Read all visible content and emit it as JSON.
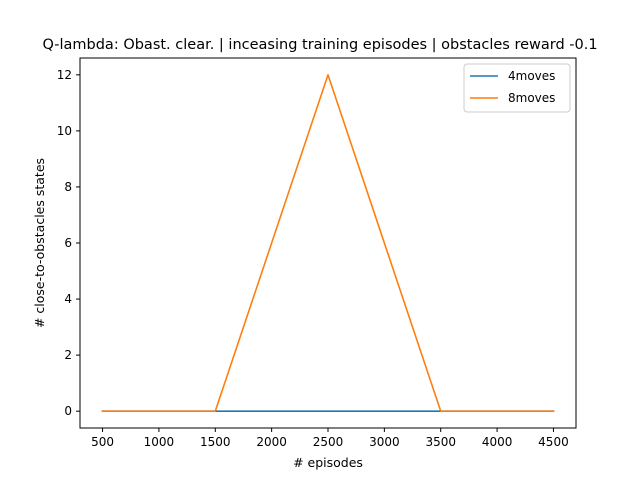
{
  "chart_data": {
    "type": "line",
    "title": "Q-lambda: Obast. clear. | inceasing training episodes | obstacles reward -0.1",
    "xlabel": "# episodes",
    "ylabel": "# close-to-obstacles states",
    "x": [
      500,
      1500,
      2500,
      3500,
      4500
    ],
    "series": [
      {
        "name": "4moves",
        "color": "#1f77b4",
        "values": [
          0,
          0,
          0,
          0,
          0
        ]
      },
      {
        "name": "8moves",
        "color": "#ff7f0e",
        "values": [
          0,
          0,
          12,
          0,
          0
        ]
      }
    ],
    "xlim": [
      300,
      4700
    ],
    "ylim": [
      -0.6,
      12.6
    ],
    "xticks": [
      500,
      1000,
      1500,
      2000,
      2500,
      3000,
      3500,
      4000,
      4500
    ],
    "yticks": [
      0,
      2,
      4,
      6,
      8,
      10,
      12
    ],
    "legend": "top-right",
    "grid": false
  }
}
